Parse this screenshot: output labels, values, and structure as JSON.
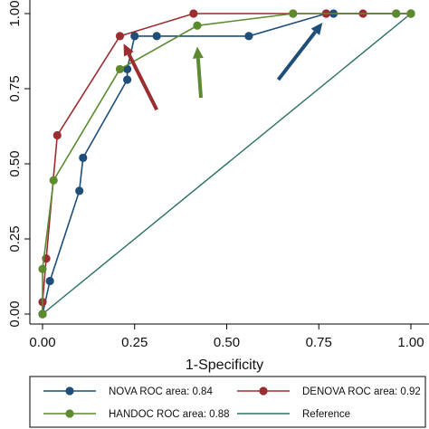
{
  "chart_data": {
    "type": "line",
    "xlabel": "1-Specificity",
    "ylabel": "",
    "xlim": [
      0,
      1
    ],
    "ylim": [
      0,
      1
    ],
    "x_ticks": [
      "0.00",
      "0.25",
      "0.50",
      "0.75",
      "1.00"
    ],
    "y_ticks": [
      "0.00",
      "0.25",
      "0.50",
      "0.75",
      "1.00"
    ],
    "grid": false,
    "legend_position": "bottom",
    "series": [
      {
        "name": "NOVA ROC area: 0.84",
        "color": "#1f4e79",
        "points": [
          [
            0,
            0
          ],
          [
            0.02,
            0.11
          ],
          [
            0.1,
            0.41
          ],
          [
            0.11,
            0.52
          ],
          [
            0.23,
            0.78
          ],
          [
            0.23,
            0.815
          ],
          [
            0.25,
            0.925
          ],
          [
            0.31,
            0.925
          ],
          [
            0.56,
            0.925
          ],
          [
            0.77,
            1
          ],
          [
            0.79,
            1
          ],
          [
            0.96,
            1
          ],
          [
            1,
            1
          ]
        ]
      },
      {
        "name": "DENOVA ROC area: 0.92",
        "color": "#9b2d30",
        "points": [
          [
            0,
            0
          ],
          [
            0,
            0.04
          ],
          [
            0.01,
            0.185
          ],
          [
            0.04,
            0.595
          ],
          [
            0.21,
            0.925
          ],
          [
            0.41,
            1
          ],
          [
            0.68,
            1
          ],
          [
            0.77,
            1
          ],
          [
            0.87,
            1
          ],
          [
            1,
            1
          ]
        ]
      },
      {
        "name": "HANDOC ROC area: 0.88",
        "color": "#5b8a2f",
        "points": [
          [
            0,
            0
          ],
          [
            0,
            0.15
          ],
          [
            0.03,
            0.445
          ],
          [
            0.21,
            0.815
          ],
          [
            0.42,
            0.96
          ],
          [
            0.68,
            1
          ],
          [
            0.96,
            1
          ],
          [
            1,
            1
          ]
        ]
      },
      {
        "name": "Reference",
        "color": "#2a7060",
        "points": [
          [
            0,
            0
          ],
          [
            1,
            1
          ]
        ]
      }
    ],
    "arrows": [
      {
        "color": "#9b2d30",
        "from": [
          0.31,
          0.68
        ],
        "to": [
          0.22,
          0.9
        ]
      },
      {
        "color": "#5b8a2f",
        "from": [
          0.43,
          0.72
        ],
        "to": [
          0.42,
          0.89
        ]
      },
      {
        "color": "#1f4e79",
        "from": [
          0.64,
          0.78
        ],
        "to": [
          0.76,
          0.97
        ]
      }
    ]
  }
}
